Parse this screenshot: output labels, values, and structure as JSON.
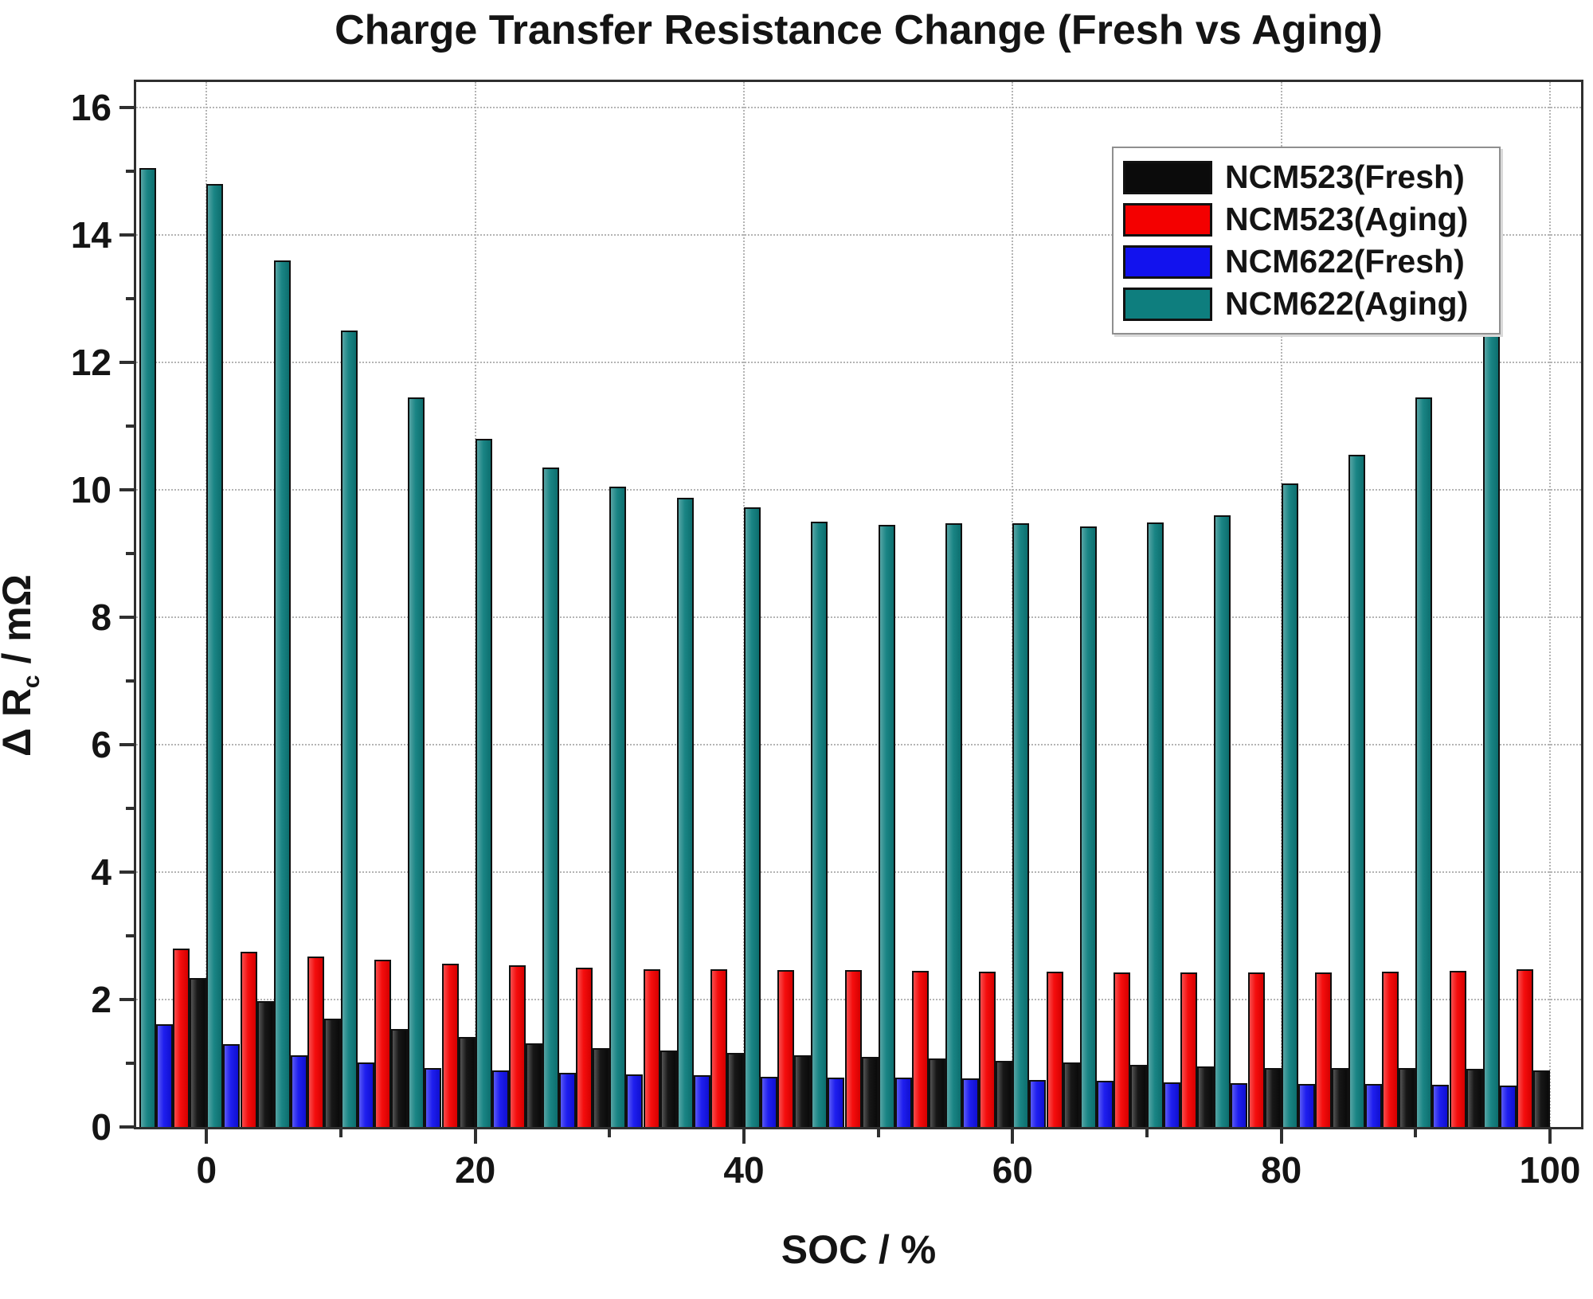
{
  "title": "Charge Transfer Resistance Change (Fresh vs Aging)",
  "axes": {
    "y_title_main": "Δ R",
    "y_title_sub": "c",
    "y_title_unit": " / mΩ",
    "x_title": "SOC / %"
  },
  "colors": {
    "teal": "#0e7e7e",
    "blue": "#1212ee",
    "red": "#f40000",
    "black": "#0b0b0b",
    "grid": "#b4b4b4",
    "frame": "#2f2f2f"
  },
  "legend": {
    "items": [
      {
        "label": "NCM523(Fresh)",
        "color": "#0b0b0b"
      },
      {
        "label": "NCM523(Aging)",
        "color": "#f40000"
      },
      {
        "label": "NCM622(Fresh)",
        "color": "#1212ee"
      },
      {
        "label": "NCM622(Aging)",
        "color": "#0e7e7e"
      }
    ],
    "position": "top-right"
  },
  "chart_data": {
    "type": "bar",
    "title": "Charge Transfer Resistance Change (Fresh vs Aging)",
    "xlabel": "SOC / %",
    "ylabel": "Δ R_c / mΩ",
    "x": [
      0,
      5,
      10,
      15,
      20,
      25,
      30,
      35,
      40,
      45,
      50,
      55,
      60,
      65,
      70,
      75,
      80,
      85,
      90,
      95,
      100
    ],
    "series": [
      {
        "name": "NCM622(Aging)",
        "color": "#0e7e7e",
        "values": [
          15.05,
          14.8,
          13.6,
          12.5,
          11.45,
          10.8,
          10.35,
          10.05,
          9.87,
          9.72,
          9.5,
          9.45,
          9.48,
          9.48,
          9.42,
          9.49,
          9.6,
          10.1,
          10.55,
          11.45,
          12.85
        ]
      },
      {
        "name": "NCM622(Fresh)",
        "color": "#1212ee",
        "values": [
          1.61,
          1.3,
          1.13,
          1.01,
          0.93,
          0.89,
          0.85,
          0.83,
          0.81,
          0.79,
          0.78,
          0.77,
          0.76,
          0.74,
          0.72,
          0.7,
          0.69,
          0.68,
          0.67,
          0.66,
          0.65
        ]
      },
      {
        "name": "NCM523(Aging)",
        "color": "#f40000",
        "values": [
          2.8,
          2.75,
          2.68,
          2.62,
          2.56,
          2.54,
          2.5,
          2.48,
          2.48,
          2.46,
          2.46,
          2.45,
          2.44,
          2.44,
          2.43,
          2.42,
          2.42,
          2.42,
          2.44,
          2.45,
          2.47
        ]
      },
      {
        "name": "NCM523(Fresh)",
        "color": "#0b0b0b",
        "values": [
          2.34,
          1.98,
          1.7,
          1.54,
          1.41,
          1.31,
          1.24,
          1.2,
          1.16,
          1.13,
          1.1,
          1.07,
          1.04,
          1.01,
          0.98,
          0.95,
          0.93,
          0.92,
          0.92,
          0.91,
          0.89
        ]
      }
    ],
    "bar_group_order": [
      "NCM622(Aging)",
      "NCM622(Fresh)",
      "NCM523(Aging)",
      "NCM523(Fresh)"
    ],
    "ylim": [
      0,
      16
    ],
    "yticks_major": [
      0,
      2,
      4,
      6,
      8,
      10,
      12,
      14,
      16
    ],
    "yticks_minor": [
      1,
      3,
      5,
      7,
      9,
      11,
      13,
      15
    ],
    "xticks_major": [
      0,
      20,
      40,
      60,
      80,
      100
    ],
    "xticks_minor": [
      10,
      30,
      50,
      70,
      90
    ],
    "grid": "dotted major gridlines, both axes",
    "legend_position": "top-right"
  }
}
